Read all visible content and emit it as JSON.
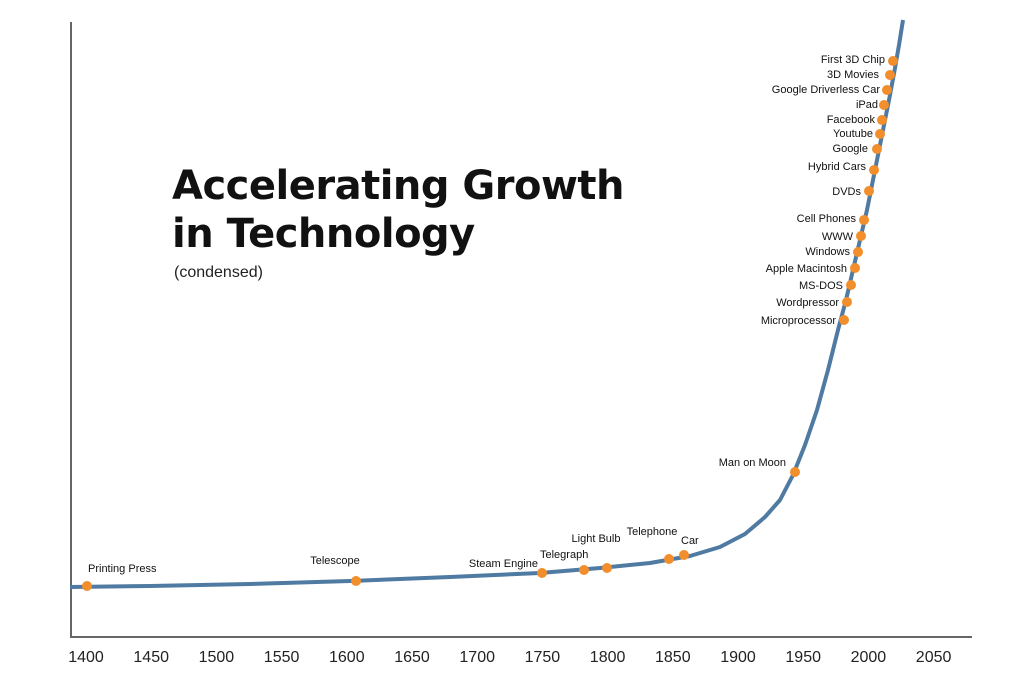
{
  "chart_data": {
    "type": "line",
    "title_lines": [
      "Accelerating Growth",
      "in Technology"
    ],
    "subtitle": "(condensed)",
    "xlabel": "",
    "ylabel": "",
    "x_ticks": [
      1400,
      1450,
      1500,
      1550,
      1600,
      1650,
      1700,
      1750,
      1800,
      1850,
      1900,
      1950,
      2000,
      2050
    ],
    "xlim": [
      1395,
      2060
    ],
    "grid": false,
    "line_color": "#4f7aa2",
    "marker_color": "#f28e2b",
    "events": [
      {
        "label": "Printing Press",
        "year": 1400,
        "side": "above"
      },
      {
        "label": "Telescope",
        "year": 1608,
        "side": "above"
      },
      {
        "label": "Steam Engine",
        "year": 1750,
        "side": "above-left"
      },
      {
        "label": "Telegraph",
        "year": 1783,
        "side": "above"
      },
      {
        "label": "Light Bulb",
        "year": 1800,
        "side": "above"
      },
      {
        "label": "Telephone",
        "year": 1849,
        "side": "above"
      },
      {
        "label": "Car",
        "year": 1860,
        "side": "above-right"
      },
      {
        "label": "Man on Moon",
        "year": 1949,
        "side": "left"
      },
      {
        "label": "Microprocessor",
        "year": 1971,
        "side": "left"
      },
      {
        "label": "Wordpressor",
        "year": 1973,
        "side": "left"
      },
      {
        "label": "MS-DOS",
        "year": 1975,
        "side": "left"
      },
      {
        "label": "Apple Macintosh",
        "year": 1977,
        "side": "left"
      },
      {
        "label": "Windows",
        "year": 1979,
        "side": "left"
      },
      {
        "label": "WWW",
        "year": 1981,
        "side": "left"
      },
      {
        "label": "Cell Phones",
        "year": 1983,
        "side": "left"
      },
      {
        "label": "DVDs",
        "year": 1987,
        "side": "left"
      },
      {
        "label": "Hybrid Cars",
        "year": 1990,
        "side": "left"
      },
      {
        "label": "Google",
        "year": 1992,
        "side": "left"
      },
      {
        "label": "Youtube",
        "year": 1994,
        "side": "left"
      },
      {
        "label": "Facebook",
        "year": 1996,
        "side": "left"
      },
      {
        "label": "iPad",
        "year": 1998,
        "side": "left"
      },
      {
        "label": "Google Driverless Car",
        "year": 2000,
        "side": "left"
      },
      {
        "label": "3D Movies",
        "year": 2002,
        "side": "left"
      },
      {
        "label": "First 3D Chip",
        "year": 2004,
        "side": "left"
      }
    ]
  }
}
